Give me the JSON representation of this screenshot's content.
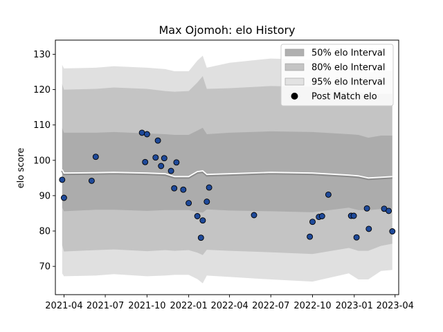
{
  "chart_data": {
    "type": "scatter",
    "title": "Max Ojomoh: elo History",
    "xlabel": "",
    "ylabel": "elo score",
    "ylim": [
      62,
      134
    ],
    "xlim": [
      "2021-03-13",
      "2023-04-09"
    ],
    "y_ticks": [
      70,
      80,
      90,
      100,
      110,
      120,
      130
    ],
    "x_ticks": [
      "2021-04-01",
      "2021-07-01",
      "2021-10-01",
      "2022-01-01",
      "2022-04-01",
      "2022-07-01",
      "2022-10-01",
      "2023-01-01",
      "2023-04-01"
    ],
    "x_tick_labels": [
      "2021-04",
      "2021-07",
      "2021-10",
      "2022-01",
      "2022-04",
      "2022-07",
      "2022-10",
      "2023-01",
      "2023-04"
    ],
    "legend_position": "top-right",
    "legend": [
      {
        "label": "50% elo Interval",
        "color": "#b0b0b0",
        "kind": "patch"
      },
      {
        "label": "80% elo Interval",
        "color": "#c4c4c4",
        "kind": "patch"
      },
      {
        "label": "95% elo Interval",
        "color": "#e2e2e2",
        "kind": "patch"
      },
      {
        "label": "Post Match elo",
        "color": "#000000",
        "kind": "marker"
      }
    ],
    "bands": {
      "dates": [
        "2021-03-28",
        "2021-04-01",
        "2021-06-10",
        "2021-07-20",
        "2021-10-01",
        "2021-11-10",
        "2021-12-01",
        "2022-01-01",
        "2022-01-20",
        "2022-02-01",
        "2022-02-10",
        "2022-04-01",
        "2022-07-01",
        "2022-10-01",
        "2022-12-20",
        "2023-01-10",
        "2023-02-01",
        "2023-03-01",
        "2023-03-26"
      ],
      "p95_upper": [
        127,
        126,
        126.2,
        126.6,
        126.2,
        125.8,
        125.2,
        125.2,
        128.2,
        129.6,
        126.2,
        127.6,
        128.8,
        128.4,
        126.2,
        125.8,
        124.8,
        125.3,
        125.4
      ],
      "p95_lower": [
        68,
        67.2,
        67.4,
        67.8,
        67.2,
        67.4,
        67.6,
        67.6,
        66.4,
        65.2,
        67.4,
        67,
        66.3,
        65.7,
        68,
        66.3,
        66.3,
        68.7,
        69
      ],
      "p80_upper": [
        121.6,
        120,
        120.2,
        120.6,
        120.2,
        119.6,
        119.4,
        119.6,
        122,
        123.8,
        120.2,
        120.4,
        121,
        120.8,
        119.5,
        119.3,
        118.5,
        118.8,
        118.8
      ],
      "p80_lower": [
        76,
        74.2,
        74.6,
        74.8,
        74.3,
        74.6,
        74.4,
        74.6,
        73.9,
        73.2,
        74.7,
        74.4,
        74,
        73.5,
        75.2,
        74.4,
        74.4,
        75.8,
        76.4
      ],
      "p50_upper": [
        109.2,
        107.8,
        107.8,
        108,
        107.6,
        107.4,
        107.2,
        107.2,
        108.4,
        109.2,
        107.4,
        107.8,
        108.2,
        108,
        107.4,
        107.2,
        106.4,
        107,
        107
      ],
      "p50_lower": [
        86.6,
        85.6,
        86,
        86,
        85.7,
        85.9,
        85.9,
        85.9,
        85.4,
        85.2,
        86.1,
        85.8,
        85.6,
        85.3,
        86.6,
        85.9,
        85.9,
        86.2,
        86.3
      ]
    },
    "mean_line": {
      "dates": [
        "2021-03-28",
        "2021-04-01",
        "2021-06-10",
        "2021-07-20",
        "2021-10-01",
        "2021-11-10",
        "2021-12-01",
        "2022-01-01",
        "2022-01-20",
        "2022-02-01",
        "2022-02-10",
        "2022-04-01",
        "2022-07-01",
        "2022-10-01",
        "2022-12-20",
        "2023-01-10",
        "2023-02-01",
        "2023-03-01",
        "2023-03-26"
      ],
      "values": [
        97.4,
        96.4,
        96.5,
        96.6,
        96.4,
        96.2,
        95.4,
        95.4,
        96.8,
        97.0,
        96.0,
        96.2,
        96.6,
        96.4,
        95.8,
        95.6,
        95.0,
        95.2,
        95.4
      ],
      "color": "#ffffff"
    },
    "series": [
      {
        "name": "Post Match elo",
        "color": "#1f4a9a",
        "points": [
          [
            "2021-03-28",
            94.5
          ],
          [
            "2021-04-01",
            89.4
          ],
          [
            "2021-06-01",
            94.2
          ],
          [
            "2021-06-10",
            101.0
          ],
          [
            "2021-09-20",
            107.8
          ],
          [
            "2021-09-27",
            99.5
          ],
          [
            "2021-10-01",
            107.4
          ],
          [
            "2021-10-20",
            100.8
          ],
          [
            "2021-10-25",
            105.6
          ],
          [
            "2021-11-01",
            98.4
          ],
          [
            "2021-11-08",
            100.6
          ],
          [
            "2021-11-23",
            97.0
          ],
          [
            "2021-11-30",
            92.1
          ],
          [
            "2021-12-05",
            99.4
          ],
          [
            "2021-12-20",
            91.7
          ],
          [
            "2022-01-01",
            87.9
          ],
          [
            "2022-01-20",
            84.2
          ],
          [
            "2022-01-28",
            78.1
          ],
          [
            "2022-02-01",
            83.0
          ],
          [
            "2022-02-10",
            88.3
          ],
          [
            "2022-02-15",
            92.3
          ],
          [
            "2022-05-25",
            84.5
          ],
          [
            "2022-09-25",
            78.4
          ],
          [
            "2022-10-01",
            82.6
          ],
          [
            "2022-10-15",
            84.0
          ],
          [
            "2022-10-22",
            84.2
          ],
          [
            "2022-11-05",
            90.3
          ],
          [
            "2022-12-25",
            84.3
          ],
          [
            "2022-12-31",
            84.3
          ],
          [
            "2023-01-06",
            78.2
          ],
          [
            "2023-01-29",
            86.4
          ],
          [
            "2023-02-02",
            80.6
          ],
          [
            "2023-03-08",
            86.3
          ],
          [
            "2023-03-18",
            85.7
          ],
          [
            "2023-03-26",
            79.9
          ]
        ]
      }
    ]
  }
}
